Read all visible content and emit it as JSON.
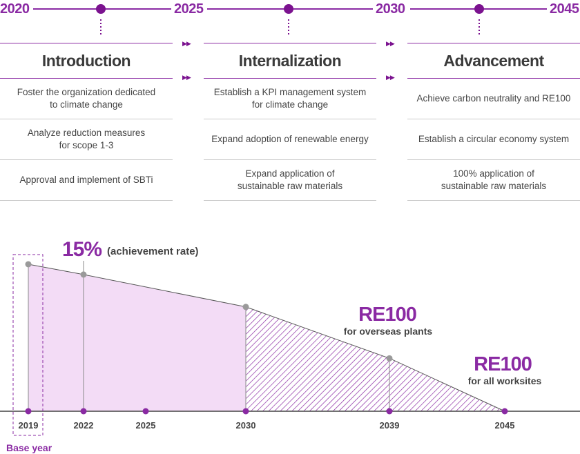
{
  "timeline": {
    "years": [
      "2020",
      "2025",
      "2030",
      "2045"
    ]
  },
  "phases": [
    {
      "title": "Introduction",
      "items": [
        "Foster the organization dedicated\nto climate change",
        "Analyze reduction measures\nfor scope 1-3",
        "Approval and implement of SBTi"
      ]
    },
    {
      "title": "Internalization",
      "items": [
        "Establish a KPI management system\nfor climate change",
        "Expand adoption of renewable energy",
        "Expand application of\nsustainable raw materials"
      ]
    },
    {
      "title": "Advancement",
      "items": [
        "Achieve carbon neutrality and RE100",
        "Establish a circular economy system",
        "100% application of\nsustainable raw materials"
      ]
    }
  ],
  "chart_data": {
    "type": "area",
    "x": [
      2019,
      2022,
      2030,
      2039,
      2045
    ],
    "values": [
      100,
      93,
      71,
      36,
      0
    ],
    "tick_labels": [
      "2019",
      "2022",
      "2025",
      "2030",
      "2039",
      "2045"
    ],
    "annotations": {
      "achievement_big": "15%",
      "achievement_small": "(achievement rate)",
      "re100_overseas_big": "RE100",
      "re100_overseas_small": "for overseas plants",
      "re100_all_big": "RE100",
      "re100_all_small": "for all worksites",
      "base_year": "Base year"
    },
    "colors": {
      "accent": "#8a2aa3",
      "fill": "#f3dcf6",
      "hatch": "#8a2aa3",
      "point": "#9a9a9a",
      "axis": "#444444"
    }
  }
}
